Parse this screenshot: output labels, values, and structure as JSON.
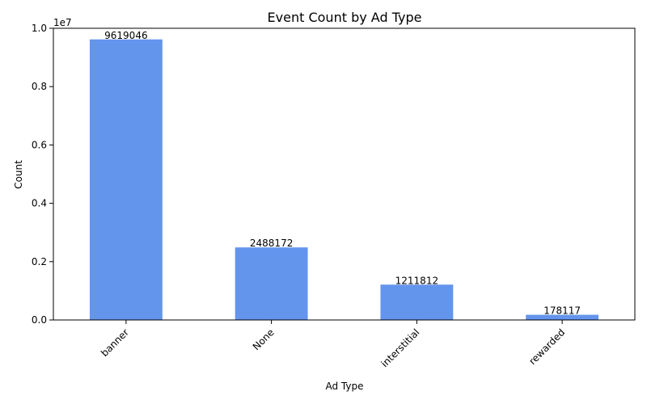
{
  "chart_data": {
    "type": "bar",
    "title": "Event Count by Ad Type",
    "xlabel": "Ad Type",
    "ylabel": "Count",
    "offset_text": "1e7",
    "categories": [
      "banner",
      "None",
      "interstitial",
      "rewarded"
    ],
    "values": [
      9619046,
      2488172,
      1211812,
      178117
    ],
    "data_labels": [
      "9619046",
      "2488172",
      "1211812",
      "178117"
    ],
    "y_ticks": [
      0,
      2000000,
      4000000,
      6000000,
      8000000,
      10000000
    ],
    "y_tick_labels": [
      "0.0",
      "0.2",
      "0.4",
      "0.6",
      "0.8",
      "1.0"
    ],
    "ylim": [
      0,
      10000000
    ],
    "bar_color": "#6495ED",
    "grid": false,
    "legend": "none"
  }
}
